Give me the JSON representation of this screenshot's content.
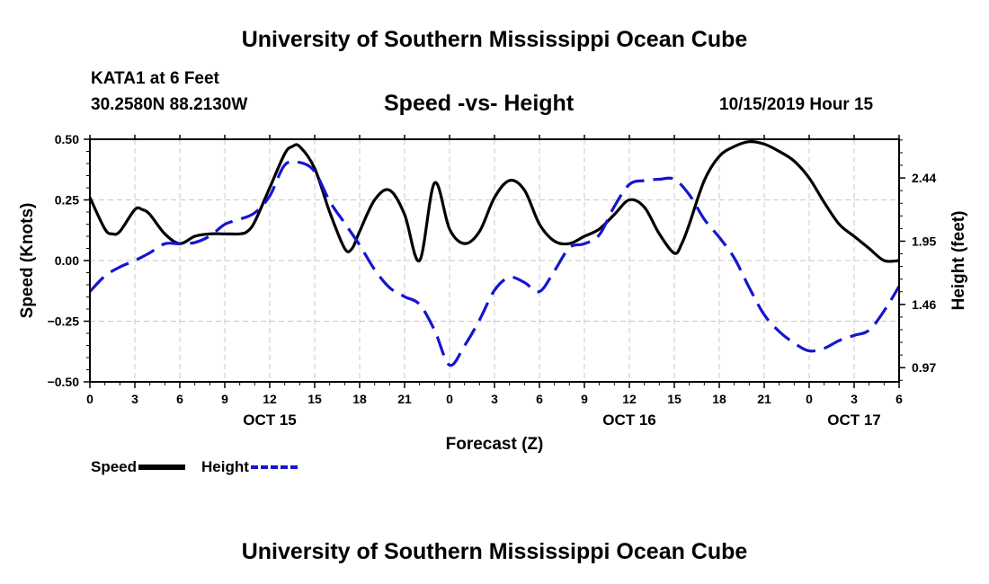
{
  "header": {
    "title": "University of Southern Mississippi Ocean Cube",
    "station": "KATA1 at 6 Feet",
    "coordinates": "30.2580N 88.2130W",
    "plot_title": "Speed -vs- Height",
    "datetime": "10/15/2019 Hour 15"
  },
  "footer": {
    "title": "University of Southern Mississippi Ocean Cube"
  },
  "legend": {
    "speed_label": "Speed",
    "height_label": "Height"
  },
  "colors": {
    "speed": "#000000",
    "height": "#1515d0",
    "grid": "#c8c8c8"
  },
  "chart_data": {
    "type": "line",
    "title": "Speed -vs- Height",
    "xlabel": "Forecast (Z)",
    "ylabel_left": "Speed (Knots)",
    "ylabel_right": "Height (feet)",
    "x_range": [
      0,
      54
    ],
    "ylim_left": [
      -0.5,
      0.5
    ],
    "ylim_right": [
      0.86,
      2.74
    ],
    "grid": true,
    "legend_position": "bottom-left",
    "x_tick_positions": [
      0,
      3,
      6,
      9,
      12,
      15,
      18,
      21,
      24,
      27,
      30,
      33,
      36,
      39,
      42,
      45,
      48,
      51,
      54
    ],
    "x_tick_labels": [
      "0",
      "3",
      "6",
      "9",
      "12",
      "15",
      "18",
      "21",
      "0",
      "3",
      "6",
      "9",
      "12",
      "15",
      "18",
      "21",
      "0",
      "3",
      "6"
    ],
    "date_labels": [
      {
        "x": 12,
        "label": "OCT 15"
      },
      {
        "x": 36,
        "label": "OCT 16"
      },
      {
        "x": 51,
        "label": "OCT 17"
      }
    ],
    "left_ticks": [
      {
        "value": 0.5,
        "label": "0.50"
      },
      {
        "value": 0.25,
        "label": "0.25"
      },
      {
        "value": 0.0,
        "label": "0.00"
      },
      {
        "value": -0.25,
        "label": "−0.25"
      },
      {
        "value": -0.5,
        "label": "−0.50"
      }
    ],
    "right_ticks": [
      {
        "value": 2.44,
        "label": "2.44"
      },
      {
        "value": 1.95,
        "label": "1.95"
      },
      {
        "value": 1.46,
        "label": "1.46"
      },
      {
        "value": 0.97,
        "label": "0.97"
      }
    ],
    "series": [
      {
        "name": "Speed",
        "axis": "left",
        "style": "solid",
        "points": [
          [
            0,
            0.26
          ],
          [
            1,
            0.13
          ],
          [
            1.5,
            0.11
          ],
          [
            2,
            0.12
          ],
          [
            3,
            0.21
          ],
          [
            3.5,
            0.21
          ],
          [
            4,
            0.19
          ],
          [
            5,
            0.11
          ],
          [
            6,
            0.07
          ],
          [
            7,
            0.1
          ],
          [
            8,
            0.11
          ],
          [
            9,
            0.11
          ],
          [
            10,
            0.11
          ],
          [
            10.5,
            0.12
          ],
          [
            11,
            0.16
          ],
          [
            12,
            0.3
          ],
          [
            13,
            0.44
          ],
          [
            13.5,
            0.47
          ],
          [
            14,
            0.47
          ],
          [
            15,
            0.38
          ],
          [
            16,
            0.2
          ],
          [
            17,
            0.05
          ],
          [
            17.5,
            0.05
          ],
          [
            18,
            0.12
          ],
          [
            19,
            0.25
          ],
          [
            20,
            0.29
          ],
          [
            21,
            0.19
          ],
          [
            22,
            0.0
          ],
          [
            23,
            0.32
          ],
          [
            24,
            0.13
          ],
          [
            25,
            0.07
          ],
          [
            26,
            0.12
          ],
          [
            27,
            0.26
          ],
          [
            28,
            0.33
          ],
          [
            29,
            0.29
          ],
          [
            30,
            0.15
          ],
          [
            31,
            0.08
          ],
          [
            32,
            0.07
          ],
          [
            33,
            0.1
          ],
          [
            34,
            0.13
          ],
          [
            35,
            0.19
          ],
          [
            36,
            0.25
          ],
          [
            37,
            0.22
          ],
          [
            38,
            0.11
          ],
          [
            39,
            0.03
          ],
          [
            39.5,
            0.07
          ],
          [
            40,
            0.15
          ],
          [
            41,
            0.33
          ],
          [
            42,
            0.43
          ],
          [
            43,
            0.47
          ],
          [
            44,
            0.49
          ],
          [
            45,
            0.48
          ],
          [
            46,
            0.45
          ],
          [
            47,
            0.41
          ],
          [
            48,
            0.34
          ],
          [
            49,
            0.24
          ],
          [
            50,
            0.15
          ],
          [
            51,
            0.1
          ],
          [
            52,
            0.05
          ],
          [
            53,
            0.0
          ],
          [
            54,
            0.0
          ]
        ]
      },
      {
        "name": "Height",
        "axis": "right",
        "style": "dashed",
        "points": [
          [
            0,
            1.56
          ],
          [
            1,
            1.68
          ],
          [
            2,
            1.75
          ],
          [
            3,
            1.8
          ],
          [
            4,
            1.86
          ],
          [
            5,
            1.93
          ],
          [
            6,
            1.93
          ],
          [
            7,
            1.94
          ],
          [
            8,
            1.99
          ],
          [
            9,
            2.08
          ],
          [
            10,
            2.12
          ],
          [
            11,
            2.17
          ],
          [
            12,
            2.3
          ],
          [
            13,
            2.54
          ],
          [
            14,
            2.56
          ],
          [
            15,
            2.49
          ],
          [
            16,
            2.26
          ],
          [
            17,
            2.09
          ],
          [
            18,
            1.92
          ],
          [
            19,
            1.73
          ],
          [
            20,
            1.59
          ],
          [
            21,
            1.52
          ],
          [
            22,
            1.46
          ],
          [
            23,
            1.26
          ],
          [
            24,
            0.99
          ],
          [
            25,
            1.14
          ],
          [
            26,
            1.34
          ],
          [
            27,
            1.57
          ],
          [
            28,
            1.67
          ],
          [
            29,
            1.63
          ],
          [
            30,
            1.56
          ],
          [
            31,
            1.72
          ],
          [
            32,
            1.9
          ],
          [
            33,
            1.93
          ],
          [
            34,
            2.0
          ],
          [
            35,
            2.22
          ],
          [
            36,
            2.39
          ],
          [
            37,
            2.42
          ],
          [
            38,
            2.43
          ],
          [
            39,
            2.43
          ],
          [
            40,
            2.31
          ],
          [
            41,
            2.12
          ],
          [
            42,
            1.98
          ],
          [
            43,
            1.82
          ],
          [
            44,
            1.59
          ],
          [
            45,
            1.38
          ],
          [
            46,
            1.25
          ],
          [
            47,
            1.16
          ],
          [
            48,
            1.1
          ],
          [
            49,
            1.12
          ],
          [
            50,
            1.18
          ],
          [
            51,
            1.22
          ],
          [
            52,
            1.26
          ],
          [
            53,
            1.41
          ],
          [
            54,
            1.6
          ]
        ]
      }
    ]
  }
}
